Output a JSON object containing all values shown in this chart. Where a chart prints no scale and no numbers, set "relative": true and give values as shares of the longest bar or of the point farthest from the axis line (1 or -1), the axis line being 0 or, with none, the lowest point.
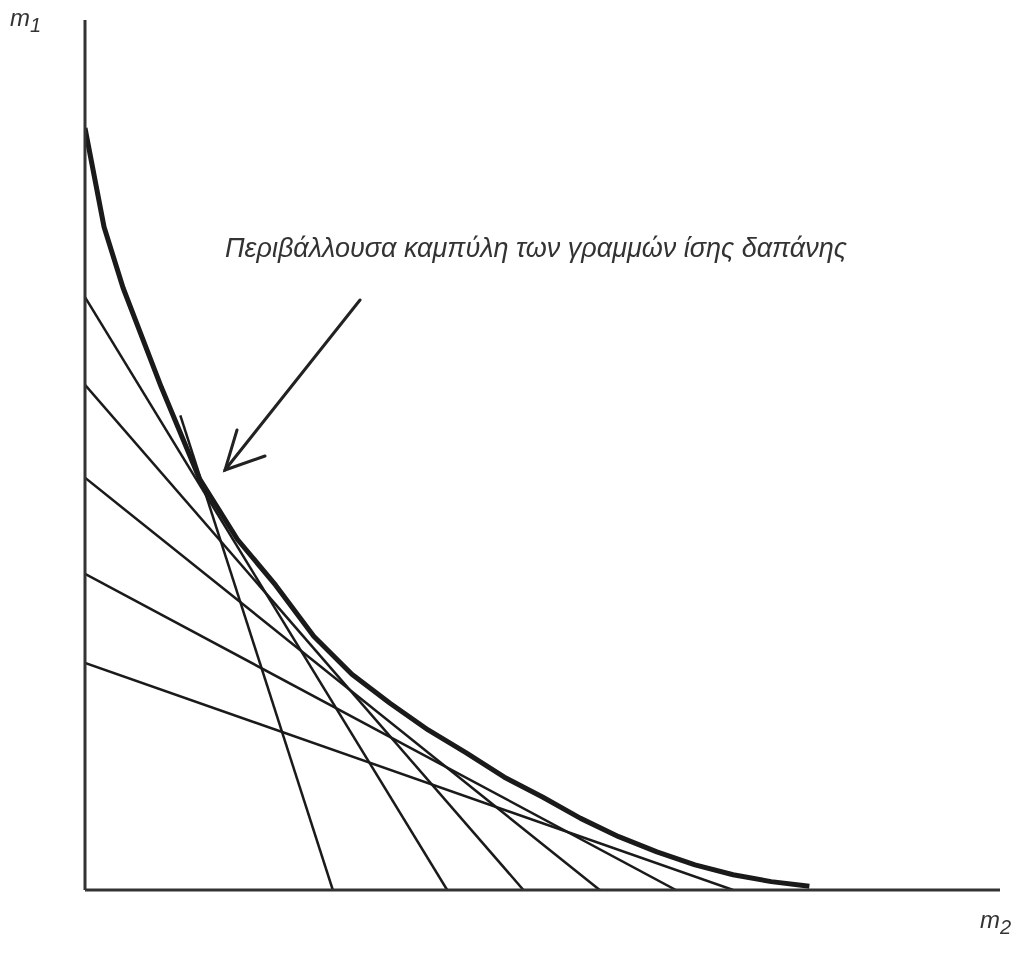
{
  "chart_data": {
    "type": "line",
    "relative": true,
    "xlabel": "m$_{2}$",
    "ylabel": "m$_{1}$",
    "line_style": "solid",
    "annotations": [
      "Περιβάλλουσα καμπύλη των γραμμών ίσης δαπάνης"
    ],
    "categories": [
      null,
      null,
      null,
      null,
      null,
      null,
      null,
      null,
      null,
      null,
      null,
      null,
      null,
      null,
      null,
      null,
      null,
      null,
      null,
      null,
      null,
      null,
      null,
      null,
      null,
      null,
      null,
      null,
      null,
      null,
      null,
      null,
      null,
      null,
      null,
      null,
      null,
      null,
      null,
      null,
      null,
      null,
      null,
      null,
      null,
      null,
      null,
      null,
      null
    ],
    "series": [
      {
        "color": "#1a1a1a",
        "values": [
          1.0,
          0.87,
          0.79,
          null,
          0.66,
          null,
          0.54,
          null,
          0.46,
          null,
          0.4,
          null,
          0.333,
          null,
          0.283,
          null,
          0.245,
          null,
          0.21,
          null,
          0.18,
          null,
          0.148,
          null,
          0.122,
          null,
          0.094,
          null,
          0.07,
          null,
          0.05,
          null,
          0.033,
          null,
          0.02,
          null,
          0.011,
          null,
          0.005,
          null,
          null,
          null,
          null,
          null,
          null,
          null,
          null,
          null,
          null
        ]
      },
      {
        "color": "#1a1a1a",
        "values": [
          null,
          null,
          null,
          null,
          null,
          0.623,
          null,
          null,
          null,
          null,
          null,
          null,
          null,
          0,
          null,
          null,
          null,
          null,
          null,
          null,
          null,
          null,
          null,
          null,
          null,
          null,
          null,
          null,
          null,
          null,
          null,
          null,
          null,
          null,
          null,
          null,
          null,
          null,
          null,
          null,
          null,
          null,
          null,
          null,
          null,
          null,
          null,
          null,
          null
        ]
      },
      {
        "color": "#1a1a1a",
        "values": [
          0.778,
          null,
          null,
          null,
          null,
          null,
          null,
          null,
          null,
          null,
          null,
          null,
          null,
          null,
          null,
          null,
          null,
          null,
          null,
          0,
          null,
          null,
          null,
          null,
          null,
          null,
          null,
          null,
          null,
          null,
          null,
          null,
          null,
          null,
          null,
          null,
          null,
          null,
          null,
          null,
          null,
          null,
          null,
          null,
          null,
          null,
          null,
          null,
          null
        ]
      },
      {
        "color": "#1a1a1a",
        "values": [
          0.663,
          null,
          null,
          null,
          null,
          null,
          null,
          null,
          null,
          null,
          null,
          null,
          null,
          null,
          null,
          null,
          null,
          null,
          null,
          null,
          null,
          null,
          null,
          0,
          null,
          null,
          null,
          null,
          null,
          null,
          null,
          null,
          null,
          null,
          null,
          null,
          null,
          null,
          null,
          null,
          null,
          null,
          null,
          null,
          null,
          null,
          null,
          null,
          null
        ]
      },
      {
        "color": "#1a1a1a",
        "values": [
          0.541,
          null,
          null,
          null,
          null,
          null,
          null,
          null,
          null,
          null,
          null,
          null,
          null,
          null,
          null,
          null,
          null,
          null,
          null,
          null,
          null,
          null,
          null,
          null,
          null,
          null,
          null,
          0,
          null,
          null,
          null,
          null,
          null,
          null,
          null,
          null,
          null,
          null,
          null,
          null,
          null,
          null,
          null,
          null,
          null,
          null,
          null,
          null,
          null
        ]
      },
      {
        "color": "#1a1a1a",
        "values": [
          0.415,
          null,
          null,
          null,
          null,
          null,
          null,
          null,
          null,
          null,
          null,
          null,
          null,
          null,
          null,
          null,
          null,
          null,
          null,
          null,
          null,
          null,
          null,
          null,
          null,
          null,
          null,
          null,
          null,
          null,
          null,
          0,
          null,
          null,
          null,
          null,
          null,
          null,
          null,
          null,
          null,
          null,
          null,
          null,
          null,
          null,
          null,
          null,
          null
        ]
      },
      {
        "color": "#1a1a1a",
        "values": [
          0.298,
          null,
          null,
          null,
          null,
          null,
          null,
          null,
          null,
          null,
          null,
          null,
          null,
          null,
          null,
          null,
          null,
          null,
          null,
          null,
          null,
          null,
          null,
          null,
          null,
          null,
          null,
          null,
          null,
          null,
          null,
          null,
          null,
          null,
          0,
          null,
          null,
          null,
          null,
          null,
          null,
          null,
          null,
          null,
          null,
          null,
          null,
          null,
          null
        ]
      }
    ]
  }
}
